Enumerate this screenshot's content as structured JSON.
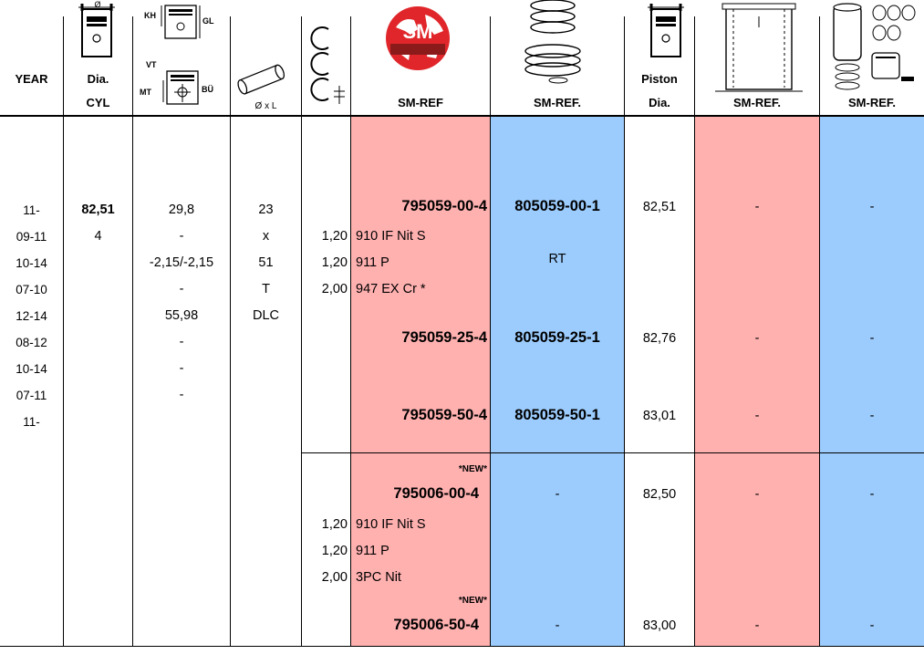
{
  "headers": {
    "year": "YEAR",
    "dia": "Dia.",
    "cyl": "CYL",
    "kh": "KH",
    "gl": "GL",
    "vt": "VT",
    "mt": "MT",
    "bu": "BÜ",
    "pin": "Ø x L",
    "sm_ref_1": "SM-REF",
    "sm_ref_2": "SM-REF.",
    "piston": "Piston",
    "piston_dia": "Dia.",
    "sm_ref_3": "SM-REF.",
    "sm_ref_4": "SM-REF.",
    "logo_text": "SM",
    "diameter_symbol": "Ø"
  },
  "years": [
    "11-",
    "09-11",
    "10-14",
    "07-10",
    "12-14",
    "08-12",
    "10-14",
    "07-11",
    "11-"
  ],
  "dia_cyl": {
    "dia": "82,51",
    "cyl": "4"
  },
  "kh_values": [
    "29,8",
    "-",
    "-2,15/-2,15",
    "-",
    "55,98",
    "-",
    "-",
    "-"
  ],
  "pin_values": [
    "23",
    "x",
    "51",
    "T",
    "DLC"
  ],
  "group1": {
    "ring_sizes": [
      "1,20",
      "1,20",
      "2,00"
    ],
    "ring_types": [
      "910 IF Nit S",
      "911 P",
      "947 EX Cr *"
    ],
    "rows": [
      {
        "sm_ref": "795059-00-4",
        "sm_ref2": "805059-00-1",
        "piston_dia": "82,51",
        "liner": "-",
        "kit": "-"
      },
      {
        "sm_ref": "795059-25-4",
        "sm_ref2": "805059-25-1",
        "piston_dia": "82,76",
        "liner": "-",
        "kit": "-"
      },
      {
        "sm_ref": "795059-50-4",
        "sm_ref2": "805059-50-1",
        "piston_dia": "83,01",
        "liner": "-",
        "kit": "-"
      }
    ],
    "rt": "RT"
  },
  "group2": {
    "new_badge": "*NEW*",
    "ring_sizes": [
      "1,20",
      "1,20",
      "2,00"
    ],
    "ring_types": [
      "910 IF Nit S",
      "911 P",
      "3PC Nit"
    ],
    "rows": [
      {
        "sm_ref": "795006-00-4",
        "sm_ref2": "-",
        "piston_dia": "82,50",
        "liner": "-",
        "kit": "-"
      },
      {
        "sm_ref": "795006-50-4",
        "sm_ref2": "-",
        "piston_dia": "83,00",
        "liner": "-",
        "kit": "-"
      }
    ]
  },
  "colors": {
    "pink": "#ffb1b0",
    "blue": "#9cccfd",
    "logo_red": "#e0262a"
  }
}
